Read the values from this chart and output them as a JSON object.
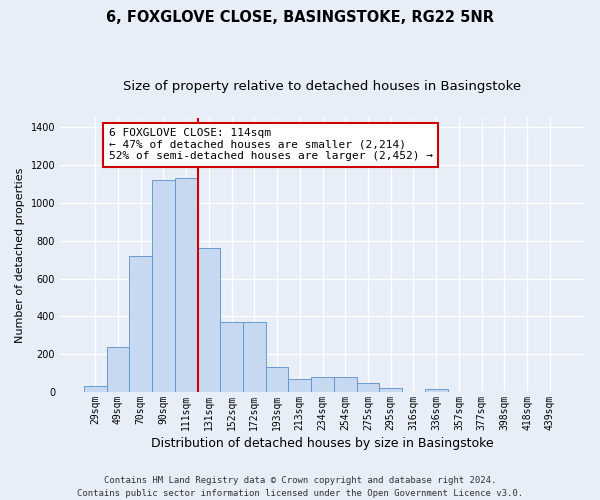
{
  "title": "6, FOXGLOVE CLOSE, BASINGSTOKE, RG22 5NR",
  "subtitle": "Size of property relative to detached houses in Basingstoke",
  "xlabel": "Distribution of detached houses by size in Basingstoke",
  "ylabel": "Number of detached properties",
  "bar_labels": [
    "29sqm",
    "49sqm",
    "70sqm",
    "90sqm",
    "111sqm",
    "131sqm",
    "152sqm",
    "172sqm",
    "193sqm",
    "213sqm",
    "234sqm",
    "254sqm",
    "275sqm",
    "295sqm",
    "316sqm",
    "336sqm",
    "357sqm",
    "377sqm",
    "398sqm",
    "418sqm",
    "439sqm"
  ],
  "bar_values": [
    30,
    240,
    720,
    1120,
    1130,
    760,
    370,
    370,
    130,
    70,
    80,
    80,
    50,
    20,
    0,
    15,
    0,
    0,
    0,
    0,
    0
  ],
  "bar_color": "#c6d9f0",
  "bar_edge_color": "#5b8fc9",
  "vline_x": 4.5,
  "vline_color": "#cc0000",
  "annotation_text": "6 FOXGLOVE CLOSE: 114sqm\n← 47% of detached houses are smaller (2,214)\n52% of semi-detached houses are larger (2,452) →",
  "annotation_box_color": "#ffffff",
  "annotation_box_edge": "#cc0000",
  "ylim": [
    0,
    1450
  ],
  "yticks": [
    0,
    200,
    400,
    600,
    800,
    1000,
    1200,
    1400
  ],
  "background_color": "#e8eef8",
  "grid_color": "#ffffff",
  "footer": "Contains HM Land Registry data © Crown copyright and database right 2024.\nContains public sector information licensed under the Open Government Licence v3.0.",
  "title_fontsize": 10.5,
  "subtitle_fontsize": 9.5,
  "xlabel_fontsize": 9,
  "ylabel_fontsize": 8,
  "tick_fontsize": 7,
  "annotation_fontsize": 8,
  "footer_fontsize": 6.5
}
